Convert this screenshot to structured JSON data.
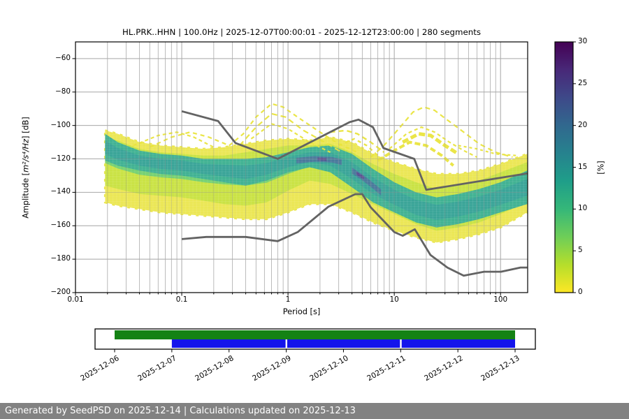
{
  "chart_data": {
    "type": "heatmap",
    "title": "HL.PRK..HHN | 100.0Hz | 2025-12-07T00:00:01 - 2025-12-12T23:00:00 | 280 segments",
    "xlabel": "Period [s]",
    "ylabel_parts": {
      "prefix": "Amplitude [",
      "math": "m²/s⁴/Hz",
      "suffix": "] [dB]"
    },
    "xscale": "log",
    "xlim": [
      0.01,
      180
    ],
    "ylim": [
      -200,
      -50
    ],
    "xticks": [
      0.01,
      0.1,
      1,
      10,
      100
    ],
    "xtick_labels": [
      "0.01",
      "0.1",
      "1",
      "10",
      "100"
    ],
    "yticks": [
      -60,
      -80,
      -100,
      -120,
      -140,
      -160,
      -180,
      -200
    ],
    "grid": true,
    "grid_color": "#b3b3b3",
    "colorbar": {
      "label": "[%]",
      "min": 0,
      "max": 30,
      "ticks": [
        0,
        5,
        10,
        15,
        20,
        25,
        30
      ],
      "colormap": "viridis_r",
      "stops_top_to_bottom": [
        "#440154",
        "#482878",
        "#3e4989",
        "#31688e",
        "#26828e",
        "#1f9e89",
        "#35b779",
        "#6ece58",
        "#b5de2b",
        "#fde725"
      ]
    },
    "density": {
      "periods": [
        0.019,
        0.025,
        0.04,
        0.063,
        0.1,
        0.16,
        0.25,
        0.4,
        0.63,
        1.0,
        1.6,
        2.5,
        4.0,
        6.3,
        10,
        16,
        25,
        40,
        63,
        100,
        178
      ],
      "yellow_top": [
        -103,
        -105,
        -110,
        -112,
        -113,
        -114,
        -113,
        -111,
        -109,
        -108,
        -109,
        -107,
        -110,
        -117,
        -122,
        -126,
        -129,
        -129,
        -127,
        -123,
        -117
      ],
      "yellow_bottom": [
        -146,
        -148,
        -150,
        -152,
        -153,
        -154,
        -155,
        -156,
        -156,
        -152,
        -147,
        -147,
        -152,
        -158,
        -163,
        -167,
        -170,
        -168,
        -165,
        -161,
        -152
      ],
      "green_top": [
        -107,
        -109,
        -114,
        -116,
        -117,
        -118,
        -118,
        -116,
        -114,
        -112,
        -112,
        -111,
        -116,
        -123,
        -129,
        -134,
        -138,
        -136,
        -133,
        -128,
        -122
      ],
      "green_bottom": [
        -136,
        -138,
        -141,
        -142,
        -143,
        -145,
        -147,
        -148,
        -146,
        -139,
        -133,
        -135,
        -141,
        -147,
        -153,
        -159,
        -163,
        -161,
        -158,
        -153,
        -146
      ],
      "core_center": [
        -113,
        -117,
        -121,
        -123,
        -124,
        -126,
        -127,
        -128,
        -126,
        -122,
        -119,
        -120,
        -127,
        -136,
        -143,
        -149,
        -152,
        -150,
        -147,
        -143,
        -137
      ],
      "core_halfwidth": [
        4,
        3.5,
        3,
        3,
        3,
        3,
        3.5,
        4,
        3.5,
        3,
        3,
        4,
        5,
        5,
        4.5,
        4.5,
        4.5,
        4.5,
        4.5,
        4.5,
        5
      ],
      "colors": {
        "yellow": "#e9e43e",
        "lightgreen": "#c3df2b",
        "green": "#63cb5f",
        "tealgreen": "#27a884",
        "teal": "#1f998a",
        "blue": "#31688e",
        "navy": "#453781"
      },
      "dark_segments": [
        {
          "p": [
            1.2,
            1.8,
            2.6,
            3.2
          ],
          "c": [
            -121,
            -120,
            -120.5,
            -122
          ],
          "hw": 1.7
        },
        {
          "p": [
            4.0,
            5.0,
            6.3,
            7.5
          ],
          "c": [
            -127,
            -131,
            -136,
            -140
          ],
          "hw": 1.8
        }
      ],
      "darkest_segments": [
        {
          "p": [
            1.9,
            2.3
          ],
          "c": [
            -120,
            -120.3
          ],
          "hw": 0.8
        },
        {
          "p": [
            4.4,
            5.2
          ],
          "c": [
            -128.5,
            -131.5
          ],
          "hw": 0.9
        }
      ]
    },
    "outlier_curves": [
      {
        "w": 2.2,
        "dash": "6 5",
        "pts": [
          [
            0.05,
            -113
          ],
          [
            0.08,
            -107
          ],
          [
            0.12,
            -104
          ],
          [
            0.18,
            -107
          ],
          [
            0.28,
            -112
          ],
          [
            0.38,
            -105
          ],
          [
            0.5,
            -95
          ],
          [
            0.7,
            -87
          ],
          [
            0.9,
            -89
          ],
          [
            1.3,
            -96
          ],
          [
            2.0,
            -104
          ],
          [
            3.0,
            -111
          ],
          [
            4.5,
            -116
          ]
        ]
      },
      {
        "w": 2.2,
        "dash": "8 5",
        "pts": [
          [
            0.35,
            -112
          ],
          [
            0.5,
            -101
          ],
          [
            0.7,
            -93
          ],
          [
            0.95,
            -95
          ],
          [
            1.4,
            -103
          ],
          [
            2.2,
            -110
          ],
          [
            3.2,
            -116
          ]
        ]
      },
      {
        "w": 2.2,
        "dash": "5 4",
        "pts": [
          [
            0.45,
            -108
          ],
          [
            0.7,
            -99
          ],
          [
            1.0,
            -102
          ],
          [
            1.6,
            -110
          ],
          [
            2.5,
            -116
          ]
        ]
      },
      {
        "w": 2.4,
        "dash": "7 5",
        "pts": [
          [
            2.5,
            -104
          ],
          [
            3.5,
            -103
          ],
          [
            4.5,
            -105
          ],
          [
            6.0,
            -110
          ],
          [
            8.0,
            -116
          ]
        ]
      },
      {
        "w": 2.4,
        "dash": "5 5",
        "pts": [
          [
            3.0,
            -112
          ],
          [
            4.2,
            -108
          ],
          [
            5.5,
            -112
          ],
          [
            7.0,
            -118
          ]
        ]
      },
      {
        "w": 2.2,
        "dash": "7 5",
        "pts": [
          [
            6.0,
            -119
          ],
          [
            8.0,
            -112
          ],
          [
            11,
            -102
          ],
          [
            15,
            -92
          ],
          [
            19,
            -89
          ],
          [
            24,
            -91
          ],
          [
            32,
            -97
          ],
          [
            45,
            -104
          ],
          [
            63,
            -111
          ],
          [
            90,
            -116
          ],
          [
            130,
            -119
          ]
        ]
      },
      {
        "w": 2.2,
        "dash": "5 4",
        "pts": [
          [
            9,
            -114
          ],
          [
            13,
            -105
          ],
          [
            18,
            -101
          ],
          [
            24,
            -104
          ],
          [
            33,
            -110
          ],
          [
            45,
            -115
          ],
          [
            60,
            -119
          ]
        ]
      },
      {
        "w": 5.0,
        "dash": "9 4",
        "pts": [
          [
            12,
            -110
          ],
          [
            17,
            -105
          ],
          [
            22,
            -106
          ],
          [
            30,
            -112
          ],
          [
            40,
            -117
          ]
        ]
      },
      {
        "w": 4.0,
        "dash": "8 4",
        "pts": [
          [
            7,
            -121
          ],
          [
            10,
            -115
          ],
          [
            14,
            -110
          ],
          [
            20,
            -112
          ],
          [
            28,
            -118
          ],
          [
            36,
            -124
          ]
        ]
      },
      {
        "w": 2.2,
        "dash": "4 4",
        "pts": [
          [
            40,
            -112
          ],
          [
            60,
            -114
          ],
          [
            90,
            -117
          ],
          [
            140,
            -118
          ]
        ]
      },
      {
        "w": 2.2,
        "dash": "5 4",
        "pts": [
          [
            0.035,
            -112
          ],
          [
            0.06,
            -106
          ],
          [
            0.09,
            -104
          ],
          [
            0.13,
            -107
          ],
          [
            0.2,
            -113
          ]
        ]
      }
    ],
    "noise_models": {
      "color": "#636363",
      "nhnm": [
        [
          0.1,
          -91.5
        ],
        [
          0.22,
          -97.4
        ],
        [
          0.32,
          -110.5
        ],
        [
          0.8,
          -120
        ],
        [
          3.8,
          -98
        ],
        [
          4.6,
          -96.5
        ],
        [
          6.3,
          -101
        ],
        [
          7.9,
          -113.5
        ],
        [
          15.4,
          -120
        ],
        [
          20,
          -138.5
        ],
        [
          178,
          -128.7
        ]
      ],
      "nlnm": [
        [
          0.1,
          -168
        ],
        [
          0.17,
          -166.7
        ],
        [
          0.4,
          -166.7
        ],
        [
          0.8,
          -169.2
        ],
        [
          1.24,
          -163.7
        ],
        [
          2.4,
          -148.6
        ],
        [
          4.3,
          -141.1
        ],
        [
          5.0,
          -141.1
        ],
        [
          6.0,
          -149
        ],
        [
          10,
          -163.8
        ],
        [
          12,
          -166
        ],
        [
          15.6,
          -162.1
        ],
        [
          21.9,
          -177.5
        ],
        [
          31.6,
          -185
        ],
        [
          45,
          -189.9
        ],
        [
          70,
          -187.5
        ],
        [
          101,
          -187.5
        ],
        [
          154,
          -185
        ],
        [
          178,
          -185
        ]
      ]
    }
  },
  "timeline": {
    "dates": [
      "2025-12-06",
      "2025-12-07",
      "2025-12-08",
      "2025-12-09",
      "2025-12-10",
      "2025-12-11",
      "2025-12-12",
      "2025-12-13"
    ],
    "green_color": "#148214",
    "blue_color": "#1414eb",
    "green_span_dates": [
      "2025-12-06",
      "2025-12-13"
    ],
    "blue_span_dates": [
      "2025-12-07",
      "2025-12-13"
    ],
    "blue_gap_dates": [
      "2025-12-09",
      "2025-12-11"
    ]
  },
  "footer": {
    "text": "Generated by SeedPSD on 2025-12-14 | Calculations updated on 2025-12-13",
    "bg": "#828282",
    "fg": "#ffffff"
  }
}
